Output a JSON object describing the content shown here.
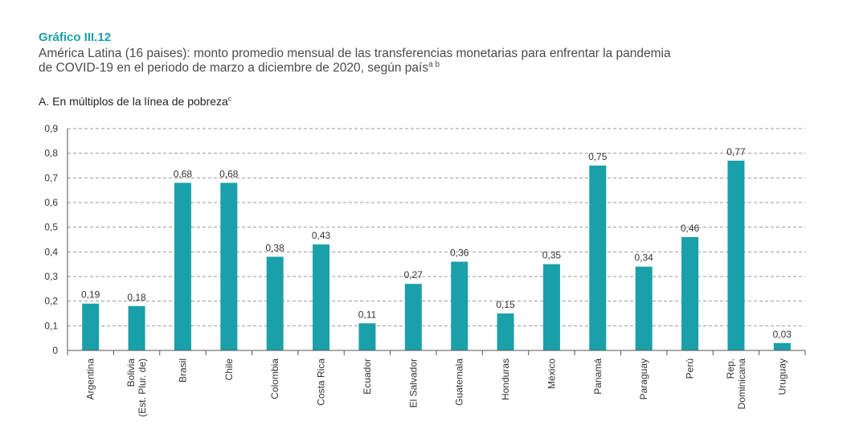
{
  "header": {
    "figure_label": "Gráfico III.12",
    "title_line1": "América Latina (16 paises): monto promedio mensual de las transferencias monetarias para enfrentar la pandemia",
    "title_line2": "de COVID-19 en el periodo de marzo a diciembre de 2020, según país",
    "title_superscript": "a b",
    "panel_title": "A. En múltiplos de la línea de pobreza",
    "panel_superscript": "c"
  },
  "colors": {
    "bar": "#1aa0a8",
    "label": "#1aa0a8"
  },
  "chart_data": {
    "type": "bar",
    "title": "A. En múltiplos de la línea de pobreza",
    "xlabel": "",
    "ylabel": "",
    "ylim": [
      0,
      0.9
    ],
    "yticks": [
      0,
      0.1,
      0.2,
      0.3,
      0.4,
      0.5,
      0.6,
      0.7,
      0.8,
      0.9
    ],
    "ytick_labels": [
      "0",
      "0,1",
      "0,2",
      "0,3",
      "0,4",
      "0,5",
      "0,6",
      "0,7",
      "0,8",
      "0,9"
    ],
    "grid": true,
    "categories": [
      [
        "Argentina"
      ],
      [
        "Bolivia",
        "(Est. Plur. de)"
      ],
      [
        "Brasil"
      ],
      [
        "Chile"
      ],
      [
        "Colombia"
      ],
      [
        "Costa Rica"
      ],
      [
        "Ecuador"
      ],
      [
        "El Salvador"
      ],
      [
        "Guatemala"
      ],
      [
        "Honduras"
      ],
      [
        "México"
      ],
      [
        "Panamá"
      ],
      [
        "Paraguay"
      ],
      [
        "Perú"
      ],
      [
        "Rep.",
        "Dominicana"
      ],
      [
        "Uruguay"
      ]
    ],
    "values": [
      0.19,
      0.18,
      0.68,
      0.68,
      0.38,
      0.43,
      0.11,
      0.27,
      0.36,
      0.15,
      0.35,
      0.75,
      0.34,
      0.46,
      0.77,
      0.03
    ],
    "value_labels": [
      "0,19",
      "0,18",
      "0,68",
      "0,68",
      "0,38",
      "0,43",
      "0,11",
      "0,27",
      "0,36",
      "0,15",
      "0,35",
      "0,75",
      "0,34",
      "0,46",
      "0,77",
      "0,03"
    ]
  }
}
